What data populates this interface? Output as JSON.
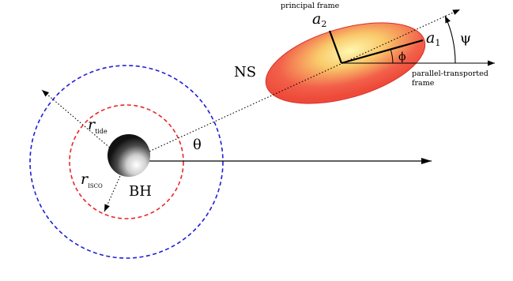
{
  "labels": {
    "principal_frame": "principal frame",
    "a2": "a",
    "a2_sub": "2",
    "a1": "a",
    "a1_sub": "1",
    "psi": "ψ",
    "phi": "ϕ",
    "ns": "NS",
    "parallel_frame_line1": "parallel-transported",
    "parallel_frame_line2": "frame",
    "theta": "θ",
    "r_tide": "r",
    "r_tide_sub": "tide",
    "r_isco": "r",
    "r_isco_sub": "ISCO",
    "bh": "BH"
  },
  "colors": {
    "outer_circle": "#1f1fd6",
    "inner_circle": "#e8262a",
    "ellipse_edge": "#e0302a",
    "ellipse_fill": "#f04a3c",
    "ellipse_core": "#fff7a8"
  }
}
